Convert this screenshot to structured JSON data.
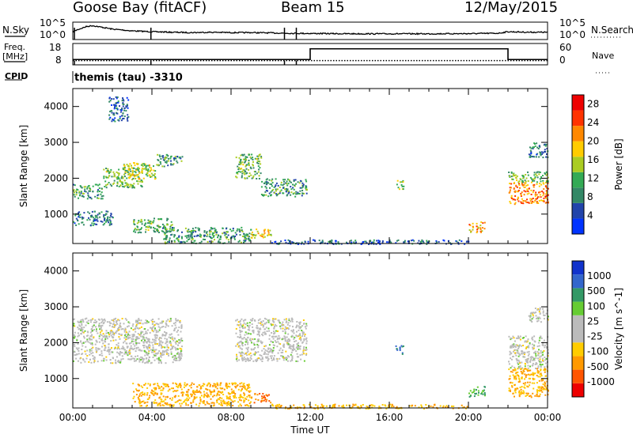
{
  "header": {
    "station": "Goose Bay (fitACF)",
    "beam": "Beam 15",
    "date": "12/May/2015"
  },
  "side_labels": {
    "nsky": "N.Sky",
    "nsearch": "N.Search",
    "freq_line1": "Freq.",
    "freq_line2": "[MHz]",
    "cpid": "CPID",
    "nave": "Nave"
  },
  "cpid_text": "themis (tau) -3310",
  "colors": {
    "power_scale": [
      "#0033ff",
      "#2244aa",
      "#338866",
      "#33aa55",
      "#aacc22",
      "#ffcc00",
      "#ff8800",
      "#ff3300",
      "#ee0000"
    ],
    "velocity_scale": [
      "#1133cc",
      "#3366cc",
      "#339966",
      "#66cc33",
      "#bbbbbb",
      "#bbbbbb",
      "#ffcc00",
      "#ff9900",
      "#ff5500",
      "#ee0000"
    ]
  },
  "chart_data": [
    {
      "type": "line",
      "panel": "noise",
      "left_ylabel": "N.Sky",
      "right_ylabel": "N.Search",
      "left_ticks": [
        "10^5",
        "10^0"
      ],
      "right_ticks": [
        "10^5",
        "10^0"
      ],
      "x_hours": [
        0.0,
        0.2,
        0.7,
        1.0,
        1.5,
        2.0,
        3.0,
        4.0,
        5.0,
        6.0,
        7.0,
        8.0,
        9.0,
        10.0,
        11.0,
        12.0,
        13.0,
        14.0,
        16.0,
        18.0,
        20.0,
        21.5,
        22.0,
        23.0,
        24.0
      ],
      "n_sky_level": [
        0.45,
        0.55,
        0.75,
        0.8,
        0.7,
        0.6,
        0.5,
        0.45,
        0.42,
        0.4,
        0.42,
        0.4,
        0.4,
        0.38,
        0.36,
        0.35,
        0.34,
        0.33,
        0.33,
        0.33,
        0.34,
        0.36,
        0.45,
        0.42,
        0.42
      ],
      "dips_hours": [
        0.08,
        3.95,
        10.7,
        11.3
      ]
    },
    {
      "type": "line",
      "panel": "frequency",
      "left_ylabel": "Freq. [MHz]",
      "right_ylabel": "Nave",
      "left_ticks": [
        "18",
        "8"
      ],
      "right_ticks": [
        "60",
        "0"
      ],
      "freq_steps": [
        {
          "start_hour": 0,
          "end_hour": 12.0,
          "value_mhz": 10.5
        },
        {
          "start_hour": 12.0,
          "end_hour": 22.0,
          "value_mhz": 15.5
        },
        {
          "start_hour": 22.0,
          "end_hour": 24.0,
          "value_mhz": 10.5
        }
      ],
      "nave_level": 12,
      "nave_dips_hours": [
        0.08,
        3.95,
        10.7,
        11.3
      ]
    },
    {
      "type": "heatmap",
      "panel": "power",
      "xlabel": "",
      "ylabel": "Slant Range [km]",
      "x_range_hours": [
        0,
        24
      ],
      "ylim_km": [
        180,
        4500
      ],
      "yticks": [
        "1000",
        "2000",
        "3000",
        "4000"
      ],
      "colorbar_label": "Power [dB]",
      "colorbar_ticks": [
        "4",
        "8",
        "12",
        "16",
        "20",
        "24",
        "28"
      ],
      "colorbar_range": [
        0,
        30
      ],
      "scatter_regions": [
        {
          "t0": 0.0,
          "t1": 1.5,
          "r0": 1450,
          "r1": 1850,
          "value": 10
        },
        {
          "t0": 1.5,
          "t1": 3.5,
          "r0": 1750,
          "r1": 2300,
          "value": 12
        },
        {
          "t0": 2.5,
          "t1": 4.2,
          "r0": 2000,
          "r1": 2450,
          "value": 16
        },
        {
          "t0": 4.2,
          "t1": 5.5,
          "r0": 2350,
          "r1": 2700,
          "value": 10
        },
        {
          "t0": 8.2,
          "t1": 9.5,
          "r0": 2000,
          "r1": 2700,
          "value": 12
        },
        {
          "t0": 9.5,
          "t1": 11.8,
          "r0": 1500,
          "r1": 2000,
          "value": 10
        },
        {
          "t0": 3.0,
          "t1": 5.0,
          "r0": 500,
          "r1": 900,
          "value": 12
        },
        {
          "t0": 4.5,
          "t1": 9.0,
          "r0": 200,
          "r1": 650,
          "value": 10
        },
        {
          "t0": 9.0,
          "t1": 10.0,
          "r0": 350,
          "r1": 600,
          "value": 18
        },
        {
          "t0": 10.0,
          "t1": 20.0,
          "r0": 180,
          "r1": 300,
          "value": 6
        },
        {
          "t0": 16.3,
          "t1": 16.7,
          "r0": 1700,
          "r1": 1950,
          "value": 14
        },
        {
          "t0": 20.0,
          "t1": 20.8,
          "r0": 500,
          "r1": 800,
          "value": 20
        },
        {
          "t0": 22.0,
          "t1": 24.0,
          "r0": 1300,
          "r1": 1900,
          "value": 22
        },
        {
          "t0": 22.0,
          "t1": 24.0,
          "r0": 1900,
          "r1": 2200,
          "value": 12
        },
        {
          "t0": 23.0,
          "t1": 24.0,
          "r0": 2600,
          "r1": 3000,
          "value": 8
        },
        {
          "t0": 1.8,
          "t1": 2.8,
          "r0": 3600,
          "r1": 4300,
          "value": 6
        },
        {
          "t0": 0.0,
          "t1": 2.0,
          "r0": 700,
          "r1": 1100,
          "value": 8
        }
      ]
    },
    {
      "type": "heatmap",
      "panel": "velocity",
      "xlabel": "Time UT",
      "ylabel": "Slant Range [km]",
      "x_range_hours": [
        0,
        24
      ],
      "ylim_km": [
        180,
        4500
      ],
      "xticks": [
        "00:00",
        "04:00",
        "08:00",
        "12:00",
        "16:00",
        "20:00",
        "00:00"
      ],
      "yticks": [
        "1000",
        "2000",
        "3000",
        "4000"
      ],
      "colorbar_label": "Velocity [m s^-1]",
      "colorbar_ticks": [
        "1000",
        "500",
        "100",
        "25",
        "-25",
        "-100",
        "-500",
        "-1000"
      ],
      "scatter_regions": [
        {
          "t0": 0.0,
          "t1": 5.5,
          "r0": 1450,
          "r1": 2700,
          "value": 0
        },
        {
          "t0": 8.2,
          "t1": 11.8,
          "r0": 1500,
          "r1": 2700,
          "value": 0
        },
        {
          "t0": 3.0,
          "t1": 9.0,
          "r0": 250,
          "r1": 900,
          "value": -100
        },
        {
          "t0": 9.0,
          "t1": 10.0,
          "r0": 350,
          "r1": 600,
          "value": -500
        },
        {
          "t0": 10.0,
          "t1": 20.0,
          "r0": 180,
          "r1": 300,
          "value": -100
        },
        {
          "t0": 16.3,
          "t1": 16.7,
          "r0": 1700,
          "r1": 1950,
          "value": 500
        },
        {
          "t0": 20.0,
          "t1": 20.8,
          "r0": 500,
          "r1": 800,
          "value": 100
        },
        {
          "t0": 22.0,
          "t1": 24.0,
          "r0": 1300,
          "r1": 2200,
          "value": 0
        },
        {
          "t0": 23.0,
          "t1": 24.0,
          "r0": 2600,
          "r1": 3000,
          "value": 0
        },
        {
          "t0": 22.0,
          "t1": 24.0,
          "r0": 500,
          "r1": 1300,
          "value": -100
        }
      ]
    }
  ]
}
